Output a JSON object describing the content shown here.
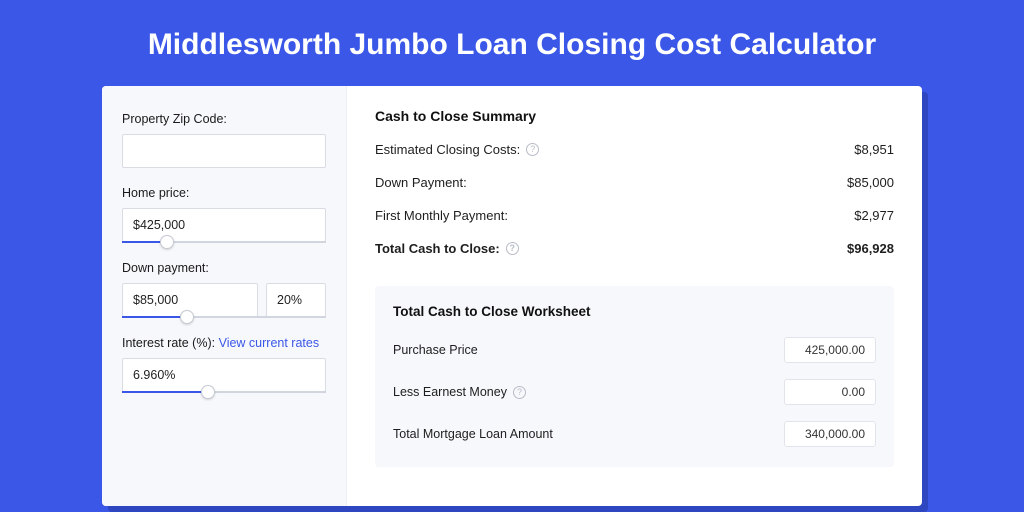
{
  "colors": {
    "accent": "#3a57e8",
    "bg": "#3a57e8",
    "panel": "#f7f8fb",
    "border": "#d9dce3"
  },
  "title": "Middlesworth Jumbo Loan Closing Cost Calculator",
  "sidebar": {
    "zip": {
      "label": "Property Zip Code:",
      "value": ""
    },
    "price": {
      "label": "Home price:",
      "value": "$425,000",
      "slider_pct": 22
    },
    "down": {
      "label": "Down payment:",
      "value": "$85,000",
      "pct": "20%",
      "slider_pct": 32
    },
    "rate": {
      "label": "Interest rate (%):",
      "link": "View current rates",
      "value": "6.960%",
      "slider_pct": 42
    }
  },
  "summary": {
    "title": "Cash to Close Summary",
    "rows": [
      {
        "label": "Estimated Closing Costs:",
        "help": true,
        "value": "$8,951"
      },
      {
        "label": "Down Payment:",
        "help": false,
        "value": "$85,000"
      },
      {
        "label": "First Monthly Payment:",
        "help": false,
        "value": "$2,977"
      }
    ],
    "total": {
      "label": "Total Cash to Close:",
      "help": true,
      "value": "$96,928"
    }
  },
  "worksheet": {
    "title": "Total Cash to Close Worksheet",
    "rows": [
      {
        "label": "Purchase Price",
        "help": false,
        "value": "425,000.00"
      },
      {
        "label": "Less Earnest Money",
        "help": true,
        "value": "0.00"
      },
      {
        "label": "Total Mortgage Loan Amount",
        "help": false,
        "value": "340,000.00"
      }
    ]
  }
}
